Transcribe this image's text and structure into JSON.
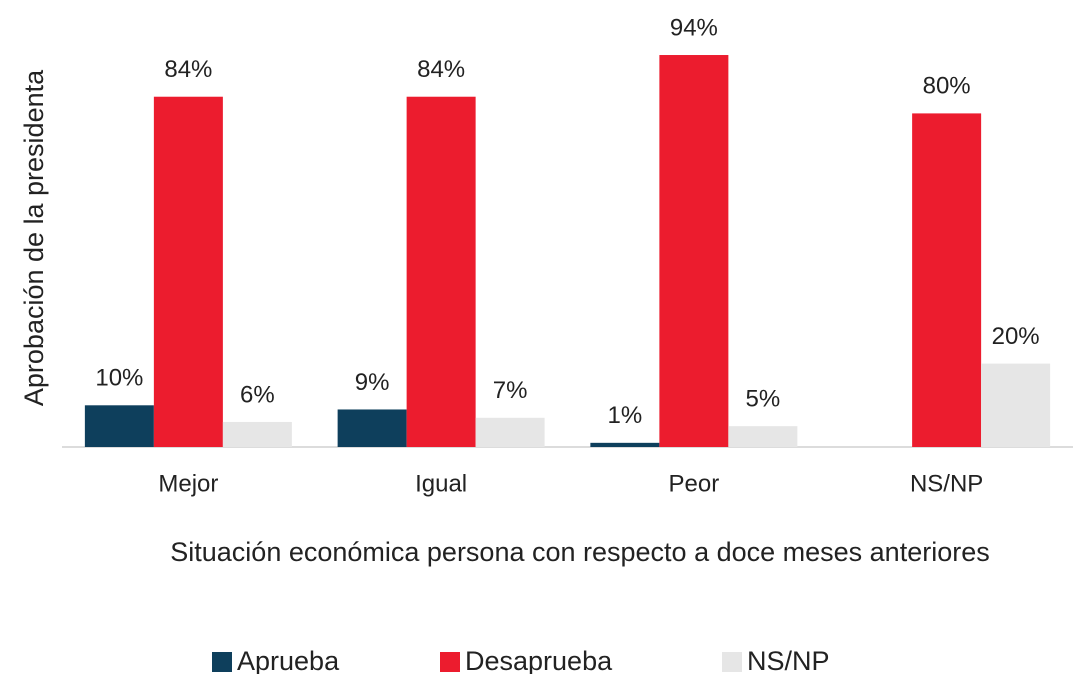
{
  "chart_data": {
    "type": "bar",
    "x_label": "Situación económica persona con respecto a doce meses anteriores",
    "y_label": "Aprobación de la presidenta",
    "categories": [
      "Mejor",
      "Igual",
      "Peor",
      "NS/NP"
    ],
    "ylim": [
      0,
      100
    ],
    "series": [
      {
        "name": "Aprueba",
        "color": "#0e3f5c",
        "values": [
          10,
          9,
          1,
          null
        ],
        "value_labels": [
          "10%",
          "9%",
          "1%",
          null
        ]
      },
      {
        "name": "Desaprueba",
        "color": "#ec1c2e",
        "values": [
          84,
          84,
          94,
          80
        ],
        "value_labels": [
          "84%",
          "84%",
          "94%",
          "80%"
        ]
      },
      {
        "name": "NS/NP",
        "color": "#e6e6e6",
        "values": [
          6,
          7,
          5,
          20
        ],
        "value_labels": [
          "6%",
          "7%",
          "5%",
          "20%"
        ]
      }
    ]
  }
}
